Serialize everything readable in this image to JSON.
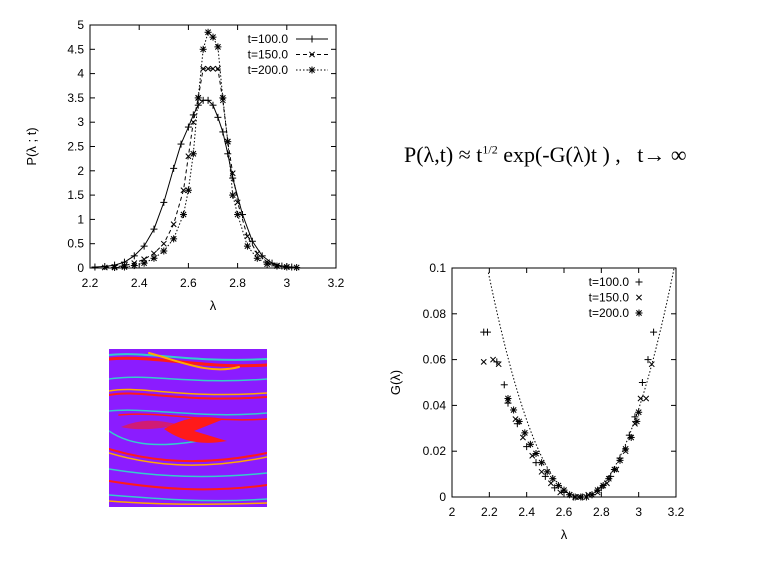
{
  "formula": {
    "lhs": "P(λ,t)",
    "approx": "≈",
    "t": "t",
    "exponent": "1/2",
    "rhs": "exp(-G(λ)t ) ,",
    "limit": "t→ ∞"
  },
  "chart_data": [
    {
      "type": "line",
      "xlabel": "λ",
      "ylabel": "P(λ ; t)",
      "xlim": [
        2.2,
        3.2
      ],
      "ylim": [
        0,
        5
      ],
      "xticks": [
        "2.2",
        "2.4",
        "2.6",
        "2.8",
        "3",
        "3.2"
      ],
      "yticks": [
        "0",
        "0.5",
        "1",
        "1.5",
        "2",
        "2.5",
        "3",
        "3.5",
        "4",
        "4.5",
        "5"
      ],
      "legend_position": "top-right",
      "series": [
        {
          "name": "t=100.0",
          "marker": "+",
          "line": "solid",
          "x": [
            2.22,
            2.26,
            2.3,
            2.34,
            2.38,
            2.42,
            2.46,
            2.5,
            2.54,
            2.57,
            2.6,
            2.62,
            2.64,
            2.66,
            2.68,
            2.7,
            2.72,
            2.74,
            2.76,
            2.78,
            2.82,
            2.86,
            2.9,
            2.94,
            2.98,
            3.02
          ],
          "y": [
            0.02,
            0.03,
            0.06,
            0.12,
            0.25,
            0.45,
            0.8,
            1.35,
            2.05,
            2.55,
            2.9,
            3.15,
            3.35,
            3.45,
            3.45,
            3.35,
            3.1,
            2.8,
            2.35,
            1.85,
            1.1,
            0.55,
            0.25,
            0.1,
            0.04,
            0.02
          ]
        },
        {
          "name": "t=150.0",
          "marker": "x",
          "line": "dashed",
          "x": [
            2.26,
            2.3,
            2.34,
            2.38,
            2.42,
            2.46,
            2.5,
            2.54,
            2.58,
            2.6,
            2.62,
            2.64,
            2.66,
            2.68,
            2.7,
            2.72,
            2.74,
            2.76,
            2.78,
            2.8,
            2.84,
            2.88,
            2.92,
            2.96,
            3.0
          ],
          "y": [
            0.01,
            0.02,
            0.05,
            0.1,
            0.18,
            0.3,
            0.5,
            0.9,
            1.6,
            2.3,
            3.0,
            3.5,
            4.1,
            4.1,
            4.1,
            4.1,
            3.45,
            2.6,
            1.95,
            1.35,
            0.65,
            0.3,
            0.12,
            0.05,
            0.02
          ]
        },
        {
          "name": "t=200.0",
          "marker": "*",
          "line": "dotted",
          "x": [
            2.3,
            2.34,
            2.38,
            2.42,
            2.46,
            2.5,
            2.54,
            2.58,
            2.6,
            2.62,
            2.64,
            2.66,
            2.68,
            2.7,
            2.72,
            2.74,
            2.76,
            2.78,
            2.8,
            2.84,
            2.88,
            2.92,
            2.96,
            3.0,
            3.04
          ],
          "y": [
            0.01,
            0.02,
            0.05,
            0.1,
            0.2,
            0.35,
            0.6,
            1.1,
            1.6,
            2.35,
            3.5,
            4.5,
            4.85,
            4.75,
            4.55,
            3.5,
            2.6,
            1.5,
            1.1,
            0.45,
            0.2,
            0.08,
            0.04,
            0.02,
            0.01
          ]
        }
      ]
    },
    {
      "type": "scatter",
      "xlabel": "λ",
      "ylabel": "G(λ)",
      "xlim": [
        2.0,
        3.2
      ],
      "ylim": [
        0,
        0.1
      ],
      "xticks": [
        "2",
        "2.2",
        "2.4",
        "2.6",
        "2.8",
        "3",
        "3.2"
      ],
      "yticks": [
        "0",
        "0.02",
        "0.04",
        "0.06",
        "0.08",
        "0.1"
      ],
      "legend_position": "top-right",
      "fit_curve": {
        "style": "dotted",
        "form": "parabola",
        "vertex_x": 2.69,
        "vertex_y": 0.0,
        "curvature": 0.4
      },
      "series": [
        {
          "name": "t=100.0",
          "marker": "+",
          "x": [
            2.17,
            2.19,
            2.24,
            2.28,
            2.3,
            2.35,
            2.4,
            2.45,
            2.5,
            2.55,
            2.6,
            2.65,
            2.7,
            2.75,
            2.8,
            2.85,
            2.9,
            2.95,
            2.98,
            3.02,
            3.05,
            3.08
          ],
          "y": [
            0.072,
            0.072,
            0.059,
            0.049,
            0.041,
            0.032,
            0.022,
            0.015,
            0.009,
            0.004,
            0.002,
            0.0,
            0.0,
            0.001,
            0.004,
            0.009,
            0.017,
            0.027,
            0.035,
            0.05,
            0.06,
            0.072
          ]
        },
        {
          "name": "t=150.0",
          "marker": "x",
          "x": [
            2.17,
            2.22,
            2.25,
            2.3,
            2.34,
            2.38,
            2.43,
            2.48,
            2.53,
            2.58,
            2.63,
            2.68,
            2.73,
            2.78,
            2.83,
            2.88,
            2.93,
            2.98,
            3.01,
            3.04,
            3.07
          ],
          "y": [
            0.059,
            0.06,
            0.058,
            0.042,
            0.034,
            0.026,
            0.018,
            0.011,
            0.006,
            0.002,
            0.001,
            0.0,
            0.001,
            0.002,
            0.006,
            0.012,
            0.02,
            0.032,
            0.043,
            0.043,
            0.058
          ]
        },
        {
          "name": "t=200.0",
          "marker": "*",
          "x": [
            2.3,
            2.33,
            2.36,
            2.39,
            2.42,
            2.45,
            2.48,
            2.51,
            2.54,
            2.57,
            2.6,
            2.63,
            2.66,
            2.69,
            2.72,
            2.75,
            2.78,
            2.81,
            2.84,
            2.87,
            2.9,
            2.93,
            2.96,
            2.99,
            3.0
          ],
          "y": [
            0.043,
            0.038,
            0.033,
            0.028,
            0.023,
            0.019,
            0.015,
            0.011,
            0.008,
            0.005,
            0.003,
            0.001,
            0.0,
            0.0,
            0.0,
            0.001,
            0.003,
            0.005,
            0.008,
            0.012,
            0.016,
            0.021,
            0.026,
            0.033,
            0.037
          ]
        }
      ]
    }
  ],
  "colors": {
    "background": "#8b1cff",
    "stripe_main": "#ff1a1a",
    "stripe_accent": "#ffaa00",
    "stripe_cyan": "#33cccc"
  }
}
